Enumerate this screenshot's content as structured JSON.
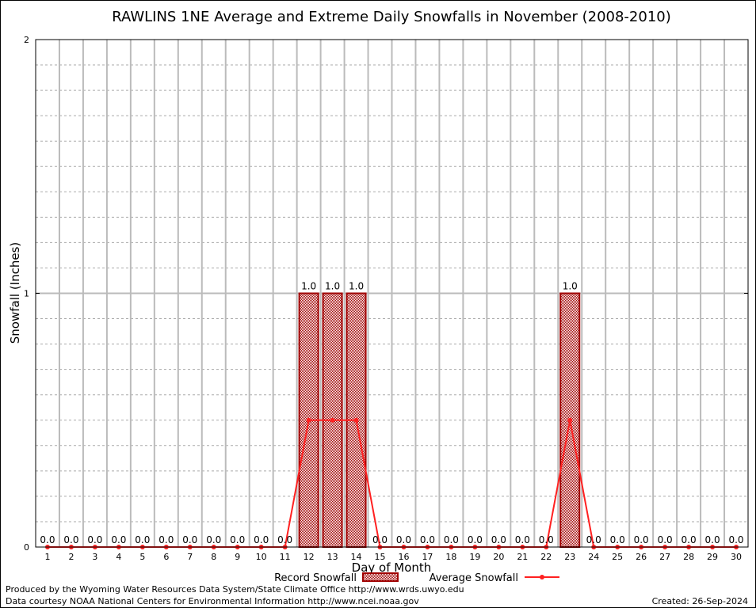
{
  "chart_data": {
    "type": "bar",
    "title": "RAWLINS 1NE Average and Extreme Daily Snowfalls in November (2008-2010)",
    "xlabel": "Day of Month",
    "ylabel": "Snowfall (Inches)",
    "ylim": [
      0,
      2
    ],
    "yticks": [
      "0",
      "1",
      "2"
    ],
    "grid": true,
    "legend_placement": "bottom-center",
    "categories": [
      "1",
      "2",
      "3",
      "4",
      "5",
      "6",
      "7",
      "8",
      "9",
      "10",
      "11",
      "12",
      "13",
      "14",
      "15",
      "16",
      "17",
      "18",
      "19",
      "20",
      "21",
      "22",
      "23",
      "24",
      "25",
      "26",
      "27",
      "28",
      "29",
      "30"
    ],
    "series": [
      {
        "name": "Record Snowfall",
        "type": "bar",
        "color": "#a00000",
        "values": [
          0,
          0,
          0,
          0,
          0,
          0,
          0,
          0,
          0,
          0,
          0,
          1.0,
          1.0,
          1.0,
          0,
          0,
          0,
          0,
          0,
          0,
          0,
          0,
          1.0,
          0,
          0,
          0,
          0,
          0,
          0,
          0
        ],
        "labels": [
          "0.0",
          "0.0",
          "0.0",
          "0.0",
          "0.0",
          "0.0",
          "0.0",
          "0.0",
          "0.0",
          "0.0",
          "0.0",
          "1.0",
          "1.0",
          "1.0",
          "0.0",
          "0.0",
          "0.0",
          "0.0",
          "0.0",
          "0.0",
          "0.0",
          "0.0",
          "1.0",
          "0.0",
          "0.0",
          "0.0",
          "0.0",
          "0.0",
          "0.0",
          "0.0"
        ]
      },
      {
        "name": "Average Snowfall",
        "type": "line",
        "color": "#ff2020",
        "values": [
          0,
          0,
          0,
          0,
          0,
          0,
          0,
          0,
          0,
          0,
          0,
          0.5,
          0.5,
          0.5,
          0,
          0,
          0,
          0,
          0,
          0,
          0,
          0,
          0.5,
          0,
          0,
          0,
          0,
          0,
          0,
          0
        ]
      }
    ]
  },
  "footer": {
    "line1": "Produced by the Wyoming Water Resources Data System/State Climate Office http://www.wrds.uwyo.edu",
    "line2": "Data courtesy NOAA National Centers for Environmental Information http://www.ncei.noaa.gov",
    "created": "Created: 26-Sep-2024"
  }
}
